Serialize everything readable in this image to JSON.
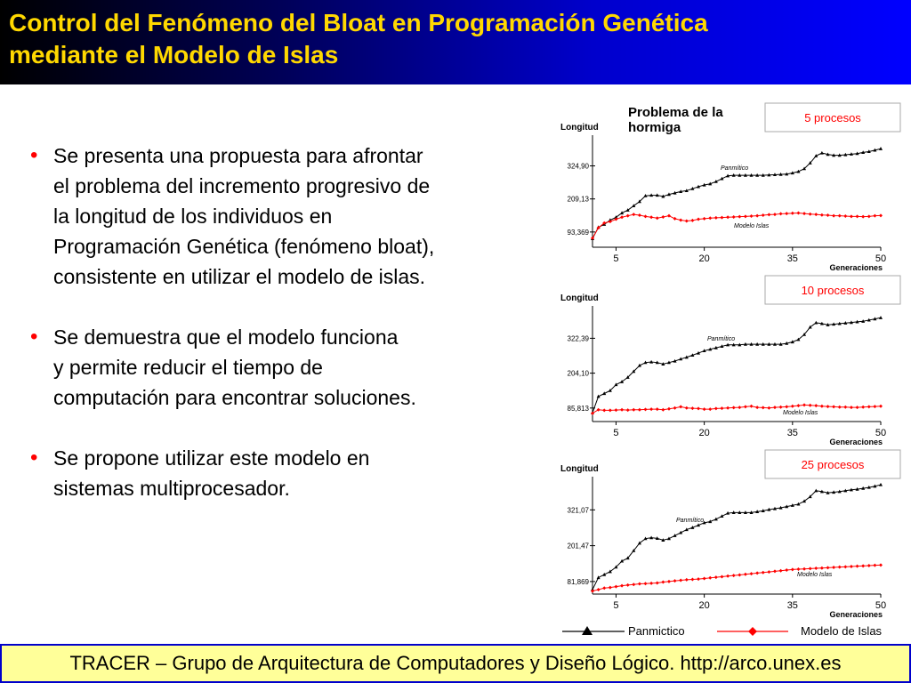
{
  "slide": {
    "title_line1": "Control del Fenómeno del Bloat en Programación Genética",
    "title_line2": "mediante el Modelo de Islas",
    "footer": "TRACER – Grupo de Arquitectura de Computadores y Diseño Lógico. http://arco.unex.es",
    "bullets": [
      {
        "lines": [
          "Se presenta una propuesta para afrontar",
          "el problema del incremento progresivo de",
          "la longitud de los individuos en",
          "Programación Genética (fenómeno bloat),",
          "consistente en utilizar el modelo de islas."
        ]
      },
      {
        "lines": [
          "Se demuestra que el modelo funciona",
          "y permite reducir el tiempo de",
          "computación para encontrar soluciones."
        ]
      },
      {
        "lines": [
          "Se propone utilizar este modelo en",
          "sistemas multiprocesador."
        ]
      }
    ]
  },
  "colors": {
    "title_text": "#ffd800",
    "bullet_dot": "#ff0000",
    "panmictic": "#000000",
    "islands": "#ff0000",
    "footer_bg": "#ffff99"
  },
  "chart_data": [
    {
      "type": "line",
      "title": "Problema de la hormiga",
      "label_box": "5 procesos",
      "ylabel": "Longitud",
      "xlabel": "Generaciones",
      "x_ticks": [
        5,
        20,
        35,
        50
      ],
      "y_ticks": [
        "93,369",
        "209,13",
        "324,90"
      ],
      "y_tick_values": [
        93.369,
        209.13,
        324.9
      ],
      "ylim": [
        40,
        420
      ],
      "xlim": [
        1,
        50
      ],
      "series_labels": [
        "Panmítico",
        "Modelo Islas"
      ],
      "series": [
        {
          "name": "Panmictico",
          "color": "#000000",
          "values": [
            70,
            110,
            120,
            135,
            145,
            160,
            170,
            185,
            200,
            220,
            222,
            222,
            218,
            225,
            230,
            235,
            238,
            245,
            252,
            258,
            262,
            270,
            280,
            290,
            292,
            292,
            292,
            292,
            292,
            292,
            293,
            294,
            295,
            296,
            300,
            305,
            315,
            335,
            360,
            370,
            365,
            362,
            362,
            364,
            366,
            368,
            372,
            375,
            380,
            385
          ]
        },
        {
          "name": "Modelo de Islas",
          "color": "#ff0000",
          "values": [
            72,
            108,
            125,
            130,
            138,
            145,
            150,
            155,
            152,
            148,
            145,
            142,
            146,
            150,
            140,
            135,
            132,
            134,
            138,
            140,
            142,
            143,
            144,
            145,
            146,
            147,
            148,
            149,
            150,
            152,
            154,
            155,
            157,
            158,
            159,
            160,
            158,
            156,
            155,
            153,
            152,
            150,
            150,
            149,
            148,
            148,
            147,
            148,
            150,
            151
          ]
        }
      ]
    },
    {
      "type": "line",
      "title": "",
      "label_box": "10 procesos",
      "ylabel": "Longitud",
      "xlabel": "Generaciones",
      "x_ticks": [
        5,
        20,
        35,
        50
      ],
      "y_ticks": [
        "85,813",
        "204,10",
        "322,39"
      ],
      "y_tick_values": [
        85.813,
        204.1,
        322.39
      ],
      "ylim": [
        40,
        420
      ],
      "xlim": [
        1,
        50
      ],
      "series_labels": [
        "Panmítico",
        "Modelo Islas"
      ],
      "series": [
        {
          "name": "Panmictico",
          "color": "#000000",
          "values": [
            70,
            125,
            135,
            145,
            165,
            175,
            190,
            210,
            230,
            240,
            242,
            240,
            235,
            240,
            245,
            252,
            258,
            265,
            272,
            280,
            285,
            290,
            295,
            300,
            300,
            300,
            302,
            302,
            302,
            302,
            302,
            302,
            302,
            305,
            310,
            318,
            335,
            360,
            375,
            372,
            368,
            370,
            372,
            374,
            376,
            378,
            380,
            384,
            388,
            392
          ]
        },
        {
          "name": "Modelo de Islas",
          "color": "#ff0000",
          "values": [
            68,
            80,
            78,
            78,
            79,
            80,
            79,
            80,
            80,
            81,
            82,
            82,
            80,
            83,
            86,
            90,
            86,
            85,
            84,
            82,
            82,
            84,
            85,
            86,
            87,
            88,
            90,
            92,
            88,
            87,
            86,
            88,
            89,
            90,
            92,
            94,
            96,
            95,
            94,
            92,
            91,
            90,
            89,
            89,
            88,
            88,
            89,
            90,
            91,
            92
          ]
        }
      ]
    },
    {
      "type": "line",
      "title": "",
      "label_box": "25 procesos",
      "ylabel": "Longitud",
      "xlabel": "Generaciones",
      "x_ticks": [
        5,
        20,
        35,
        50
      ],
      "y_ticks": [
        "81,869",
        "201,47",
        "321,07"
      ],
      "y_tick_values": [
        81.869,
        201.47,
        321.07
      ],
      "ylim": [
        40,
        420
      ],
      "xlim": [
        1,
        50
      ],
      "series_labels": [
        "Panmítico",
        "Modelo Islas"
      ],
      "series": [
        {
          "name": "Panmictico",
          "color": "#000000",
          "values": [
            55,
            95,
            105,
            115,
            130,
            150,
            160,
            185,
            210,
            225,
            228,
            226,
            220,
            225,
            235,
            245,
            255,
            262,
            270,
            278,
            282,
            290,
            300,
            310,
            312,
            312,
            312,
            312,
            315,
            318,
            322,
            325,
            328,
            332,
            336,
            340,
            350,
            365,
            385,
            382,
            378,
            380,
            382,
            385,
            388,
            390,
            393,
            396,
            400,
            405
          ]
        },
        {
          "name": "Modelo de Islas",
          "color": "#ff0000",
          "values": [
            50,
            55,
            60,
            62,
            65,
            68,
            70,
            72,
            74,
            75,
            76,
            77,
            80,
            82,
            84,
            86,
            88,
            89,
            90,
            92,
            94,
            96,
            98,
            100,
            102,
            104,
            106,
            108,
            110,
            112,
            114,
            116,
            118,
            120,
            122,
            123,
            124,
            125,
            126,
            127,
            128,
            129,
            130,
            131,
            132,
            133,
            134,
            135,
            136,
            137
          ]
        }
      ]
    }
  ],
  "legend": {
    "panmictic_label": "Panmictico",
    "islands_label": "Modelo de Islas"
  }
}
